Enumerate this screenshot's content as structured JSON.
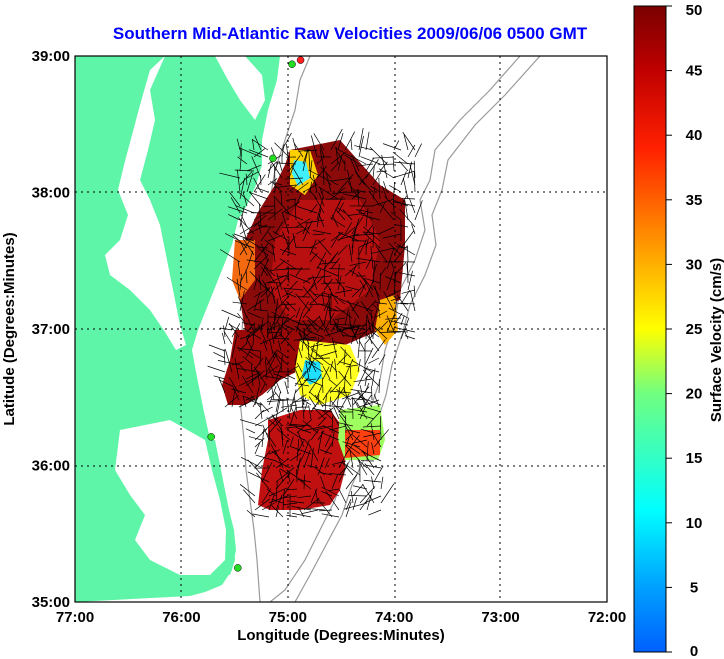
{
  "title": "Southern Mid-Atlantic Raw Velocities 2009/06/06 0500 GMT",
  "axes": {
    "xlabel": "Longitude (Degrees:Minutes)",
    "ylabel": "Latitude (Degrees:Minutes)",
    "x_ticks": [
      "77:00",
      "76:00",
      "75:00",
      "74:00",
      "73:00",
      "72:00"
    ],
    "y_ticks": [
      "39:00",
      "38:00",
      "37:00",
      "36:00",
      "35:00"
    ],
    "xlim": [
      -77,
      -72
    ],
    "ylim": [
      35,
      39
    ]
  },
  "colorbar": {
    "label": "Surface Velocity (cm/s)",
    "ticks": [
      "50",
      "45",
      "40",
      "35",
      "30",
      "25",
      "20",
      "15",
      "10",
      "5",
      "0"
    ],
    "range": [
      0,
      50
    ]
  },
  "colors": {
    "land": "#5ff5a8",
    "title": "#0000ff",
    "station": "#22dd22",
    "station_alt": "#ff2020"
  },
  "stations": [
    {
      "lon": -74.88,
      "lat": 38.97,
      "color": "red"
    },
    {
      "lon": -74.96,
      "lat": 38.94,
      "color": "green"
    },
    {
      "lon": -75.14,
      "lat": 38.25,
      "color": "green"
    },
    {
      "lon": -75.72,
      "lat": 36.21,
      "color": "green"
    },
    {
      "lon": -75.47,
      "lat": 35.25,
      "color": "green"
    }
  ]
}
